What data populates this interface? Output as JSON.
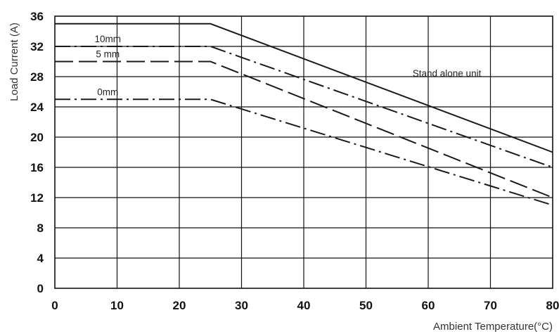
{
  "chart_data": {
    "type": "line",
    "title": "",
    "xlabel": "Ambient Temperature(°C)",
    "ylabel": "Load Current (A)",
    "xlim": [
      0,
      80
    ],
    "ylim": [
      0,
      36
    ],
    "grid": true,
    "x_ticks": [
      0,
      10,
      20,
      30,
      40,
      50,
      60,
      70,
      80
    ],
    "y_ticks": [
      0,
      4,
      8,
      12,
      16,
      20,
      24,
      28,
      32,
      36
    ],
    "annotations": [
      {
        "text": "Stand alone unit",
        "x": 63,
        "y": 28
      }
    ],
    "series": [
      {
        "key": "stand-alone",
        "name": "",
        "style": "solid",
        "points": [
          [
            0,
            35
          ],
          [
            25,
            35
          ],
          [
            80,
            18
          ]
        ]
      },
      {
        "key": "10mm",
        "name": "10mm",
        "style": "dash-dot",
        "points": [
          [
            0,
            32
          ],
          [
            25,
            32
          ],
          [
            80,
            16
          ]
        ]
      },
      {
        "key": "5mm",
        "name": "5 mm",
        "style": "long-dash",
        "points": [
          [
            0,
            30
          ],
          [
            25,
            30
          ],
          [
            80,
            12
          ]
        ]
      },
      {
        "key": "0mm",
        "name": "0mm",
        "style": "dash-dot",
        "points": [
          [
            0,
            25
          ],
          [
            25,
            25
          ],
          [
            80,
            11
          ]
        ]
      }
    ]
  }
}
